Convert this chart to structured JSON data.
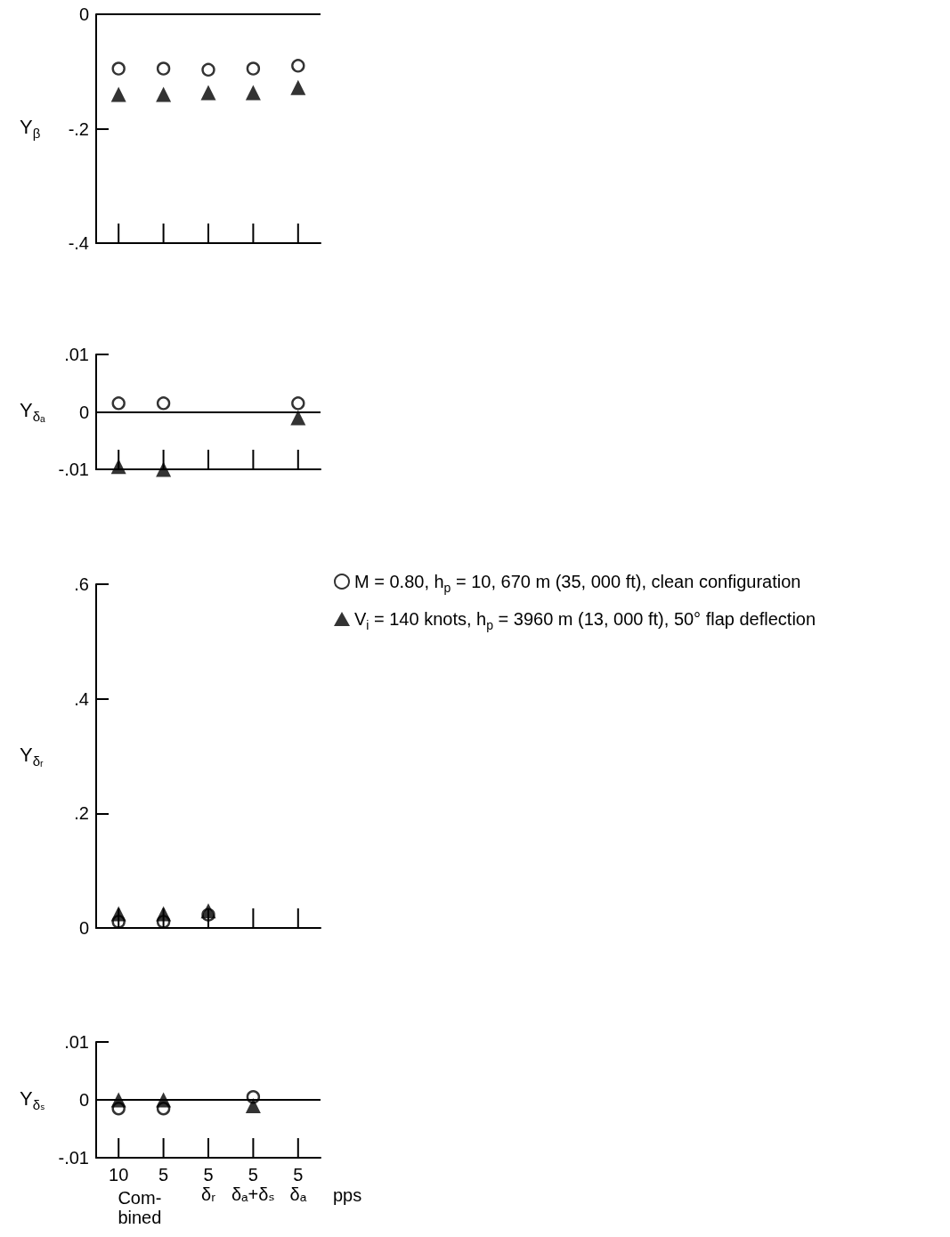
{
  "chart_data": [
    {
      "type": "scatter",
      "ylabel": "Y$_{β}$",
      "categories": [
        null,
        null,
        null,
        null,
        null
      ],
      "legend": false,
      "grid": false,
      "ylim": [
        -0.4,
        0
      ],
      "yticks": [
        {
          "value": 0,
          "label": "0"
        },
        {
          "value": -0.2,
          "label": "-.2"
        },
        {
          "value": -0.4,
          "label": "-.4"
        }
      ],
      "ref_lines": [
        {
          "axis": "y",
          "value": 0
        }
      ],
      "series": [
        {
          "color": "#000000",
          "marker": "circle",
          "values": [
            -0.095,
            -0.095,
            -0.097,
            -0.095,
            -0.09
          ]
        },
        {
          "color": "#000000",
          "marker": "triangle",
          "values": [
            -0.14,
            -0.14,
            -0.137,
            -0.137,
            -0.128
          ]
        }
      ]
    },
    {
      "type": "scatter",
      "ylabel": "Y$_{δₐ}$",
      "categories": [
        null,
        null,
        null,
        null,
        null
      ],
      "legend": false,
      "grid": false,
      "ylim": [
        -0.01,
        0.01
      ],
      "yticks": [
        {
          "value": 0.01,
          "label": ".01"
        },
        {
          "value": 0,
          "label": "0"
        },
        {
          "value": -0.01,
          "label": "-.01"
        }
      ],
      "ref_lines": [
        {
          "axis": "y",
          "value": 0
        }
      ],
      "series": [
        {
          "color": "#000000",
          "marker": "circle",
          "values": [
            0.0015,
            0.0015,
            null,
            null,
            0.0015
          ]
        },
        {
          "color": "#000000",
          "marker": "triangle",
          "values": [
            -0.0095,
            -0.01,
            null,
            null,
            -0.001
          ]
        }
      ]
    },
    {
      "type": "scatter",
      "ylabel": "Y$_{δᵣ}$",
      "categories": [
        null,
        null,
        null,
        null,
        null
      ],
      "legend": "right",
      "grid": false,
      "ylim": [
        0,
        0.6
      ],
      "yticks": [
        {
          "value": 0.6,
          "label": ".6"
        },
        {
          "value": 0.4,
          "label": ".4"
        },
        {
          "value": 0.2,
          "label": ".2"
        },
        {
          "value": 0,
          "label": "0"
        }
      ],
      "series": [
        {
          "name": "M = 0.80, h$_{p}$ = 10, 670 m (35, 000 ft), clean configuration",
          "color": "#000000",
          "marker": "circle",
          "values": [
            0.011,
            0.011,
            0.023,
            null,
            null
          ]
        },
        {
          "name": "V$_{i}$ = 140 knots, h$_{p}$ = 3960 m (13, 000 ft), 50° flap deflection",
          "color": "#000000",
          "marker": "triangle",
          "values": [
            0.025,
            0.025,
            0.03,
            null,
            null
          ]
        }
      ]
    },
    {
      "type": "scatter",
      "ylabel": "Y$_{δₛ}$",
      "xlabel": "pps",
      "categories": [
        "10",
        "5",
        "5\nδᵣ",
        "5\nδₐ+δₛ",
        "5\nδₐ"
      ],
      "legend": false,
      "grid": false,
      "ylim": [
        -0.01,
        0.01
      ],
      "yticks": [
        {
          "value": 0.01,
          "label": ".01"
        },
        {
          "value": 0,
          "label": "0"
        },
        {
          "value": -0.01,
          "label": "-.01"
        }
      ],
      "ref_lines": [
        {
          "axis": "y",
          "value": 0
        }
      ],
      "annotations": [
        "Com-\nbined"
      ],
      "series": [
        {
          "color": "#000000",
          "marker": "circle",
          "values": [
            -0.0015,
            -0.0015,
            null,
            0.0005,
            null
          ]
        },
        {
          "color": "#000000",
          "marker": "triangle",
          "values": [
            0,
            0,
            null,
            -0.001,
            null
          ]
        }
      ]
    }
  ]
}
